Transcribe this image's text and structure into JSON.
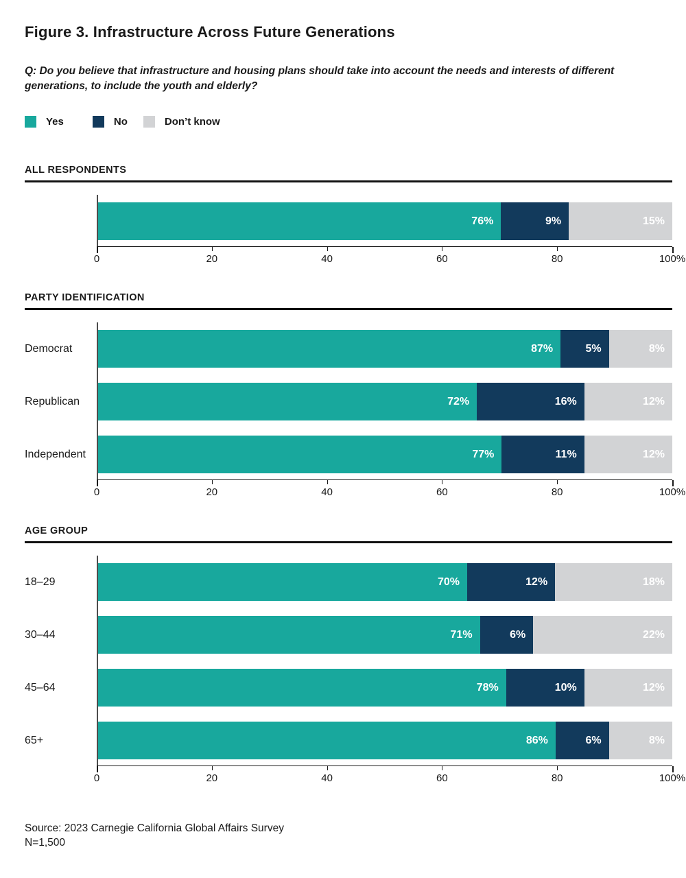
{
  "page": {
    "title": "Figure 3. Infrastructure Across Future Generations",
    "question_line1": "Q: Do you believe that infrastructure and housing plans should take into account the needs and interests of different",
    "question_line2": "generations, to include the youth and elderly?",
    "source_line1": "Source: 2023 Carnegie California Global Affairs Survey",
    "source_line2": "N=1,500"
  },
  "colors": {
    "yes": "#18a89d",
    "no": "#123a5c",
    "dont_know": "#d2d3d5"
  },
  "legend": [
    {
      "label": "Yes",
      "key": "yes"
    },
    {
      "label": "No",
      "key": "no"
    },
    {
      "label": "Don’t know",
      "key": "dont_know"
    }
  ],
  "chart_data": {
    "type": "bar",
    "orientation": "horizontal",
    "stacked": true,
    "xlim": [
      0,
      100
    ],
    "x_ticks": [
      "0",
      "20",
      "40",
      "60",
      "80",
      "100%"
    ],
    "series_names": [
      "Yes",
      "No",
      "Don’t know"
    ],
    "legend_position": "top-left",
    "grid": false,
    "sections": [
      {
        "heading": "ALL RESPONDENTS",
        "rows": [
          {
            "label": "",
            "values": [
              76,
              9,
              15
            ],
            "labels": [
              "76%",
              "9%",
              "15%"
            ]
          }
        ]
      },
      {
        "heading": "PARTY IDENTIFICATION",
        "rows": [
          {
            "label": "Democrat",
            "values": [
              87,
              5,
              8
            ],
            "labels": [
              "87%",
              "5%",
              "8%"
            ]
          },
          {
            "label": "Republican",
            "values": [
              72,
              16,
              12
            ],
            "labels": [
              "72%",
              "16%",
              "12%"
            ]
          },
          {
            "label": "Independent",
            "values": [
              77,
              11,
              12
            ],
            "labels": [
              "77%",
              "11%",
              "12%"
            ]
          }
        ]
      },
      {
        "heading": "AGE GROUP",
        "rows": [
          {
            "label": "18–29",
            "values": [
              70,
              12,
              18
            ],
            "labels": [
              "70%",
              "12%",
              "18%"
            ]
          },
          {
            "label": "30–44",
            "values": [
              71,
              6,
              22
            ],
            "labels": [
              "71%",
              "6%",
              "22%"
            ]
          },
          {
            "label": "45–64",
            "values": [
              78,
              10,
              12
            ],
            "labels": [
              "78%",
              "10%",
              "12%"
            ]
          },
          {
            "label": "65+",
            "values": [
              86,
              6,
              8
            ],
            "labels": [
              "86%",
              "6%",
              "8%"
            ]
          }
        ]
      }
    ]
  }
}
